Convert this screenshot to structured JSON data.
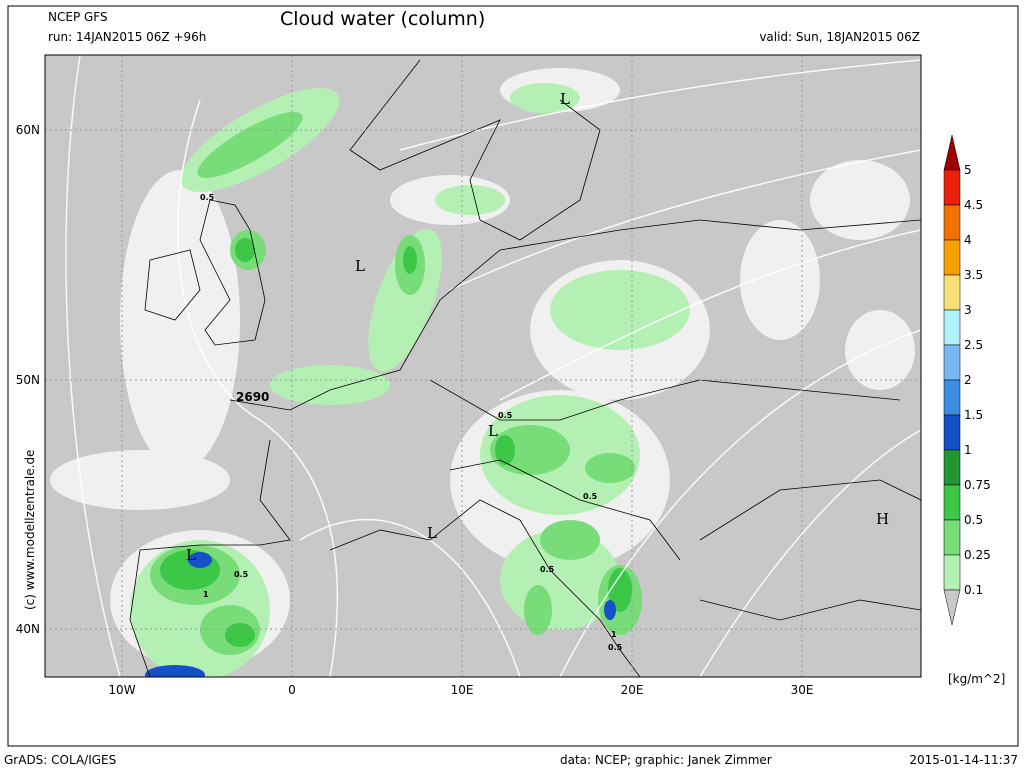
{
  "header": {
    "model": "NCEP GFS",
    "run": "run: 14JAN2015 06Z +96h",
    "title": "Cloud water (column)",
    "valid": "valid: Sun, 18JAN2015 06Z"
  },
  "map": {
    "lat_labels": [
      "60N",
      "50N",
      "40N"
    ],
    "lon_labels": [
      "10W",
      "0",
      "10E",
      "20E",
      "30E"
    ],
    "copyright": "(c)  www.modellzentrale.de",
    "labels": [
      "L",
      "L",
      "L",
      "L",
      "L",
      "L",
      "H",
      "2690",
      "0.5",
      "0.5",
      "0.5",
      "0.5",
      "1",
      "1",
      "0.5",
      "0.5"
    ]
  },
  "colorbar": {
    "levels": [
      5,
      4.5,
      4,
      3.5,
      3,
      2.5,
      2,
      1.5,
      1,
      0.75,
      0.5,
      0.25,
      0.1
    ],
    "colors": [
      "#a00000",
      "#e8200c",
      "#f07000",
      "#f8a000",
      "#f8e078",
      "#b0f0f8",
      "#78b8f0",
      "#3c8ce0",
      "#1450c8",
      "#1e9632",
      "#3cc846",
      "#78dc78",
      "#b4f0b4",
      "#f0f0f0",
      "#c8c8c8"
    ],
    "unit": "[kg/m^2]"
  },
  "footer": {
    "left": "GrADS: COLA/IGES",
    "center": "data: NCEP; graphic: Janek Zimmer",
    "right": "2015-01-14-11:37"
  }
}
